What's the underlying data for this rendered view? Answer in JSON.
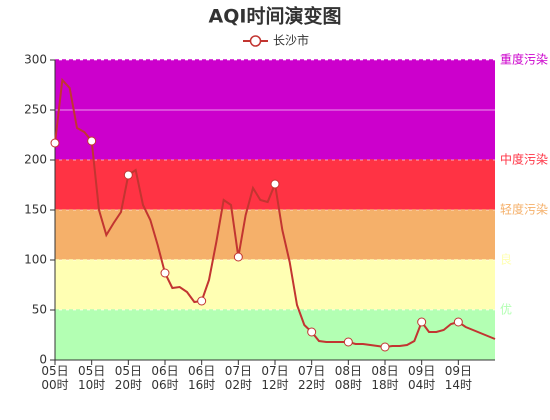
{
  "chart_data": {
    "type": "line",
    "title": "AQI时间演变图",
    "categories": [
      "05日\n00时",
      null,
      null,
      null,
      null,
      "05日\n10时",
      null,
      null,
      null,
      null,
      "05日\n20时",
      null,
      null,
      null,
      null,
      "06日\n06时",
      null,
      null,
      null,
      null,
      "06日\n16时",
      null,
      null,
      null,
      null,
      "07日\n02时",
      null,
      null,
      null,
      null,
      "07日\n12时",
      null,
      null,
      null,
      null,
      "07日\n22时",
      null,
      null,
      null,
      null,
      "08日\n08时",
      null,
      null,
      null,
      null,
      "08日\n18时",
      null,
      null,
      null,
      null,
      "09日\n04时",
      null,
      null,
      null,
      null,
      "09日\n14时",
      null,
      null,
      null,
      null,
      null
    ],
    "series": [
      {
        "name": "长沙市",
        "color": "#c23531",
        "values": [
          217,
          280,
          272,
          232,
          228,
          219,
          150,
          125,
          137,
          148,
          185,
          190,
          155,
          140,
          115,
          87,
          72,
          73,
          68,
          58,
          59,
          80,
          118,
          160,
          155,
          103,
          145,
          172,
          160,
          158,
          176,
          130,
          98,
          55,
          35,
          28,
          19,
          18,
          18,
          18,
          18,
          16,
          16,
          15,
          14,
          13,
          14,
          14,
          15,
          19,
          38,
          28,
          28,
          30,
          36,
          38,
          33,
          30,
          27,
          24,
          21
        ]
      }
    ],
    "ylim": [
      0,
      300
    ],
    "yticks": [
      0,
      50,
      100,
      150,
      200,
      250,
      300
    ],
    "grid": true,
    "bands": [
      {
        "min": 0,
        "max": 50,
        "color": "#b3ffb3",
        "label": "优"
      },
      {
        "min": 50,
        "max": 100,
        "color": "#ffffb3",
        "label": "良"
      },
      {
        "min": 100,
        "max": 150,
        "color": "#f5b06a",
        "label": "轻度污染"
      },
      {
        "min": 150,
        "max": 200,
        "color": "#ff3344",
        "label": "中度污染"
      },
      {
        "min": 200,
        "max": 300,
        "color": "#cc00cc",
        "label": "重度污染"
      }
    ]
  }
}
